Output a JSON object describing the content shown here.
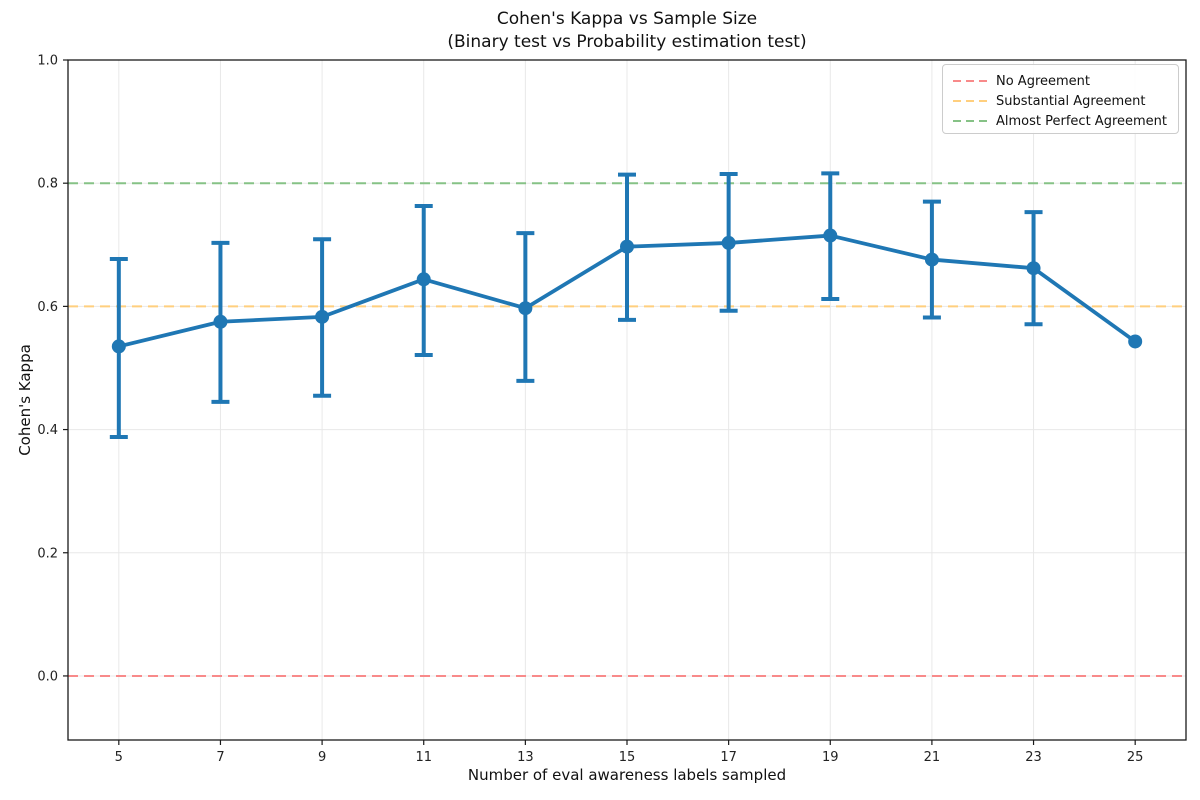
{
  "chart_data": {
    "type": "line",
    "title": "Cohen's Kappa vs Sample Size",
    "subtitle": "(Binary test vs Probability estimation test)",
    "xlabel": "Number of eval awareness labels sampled",
    "ylabel": "Cohen's Kappa",
    "x": [
      5,
      7,
      9,
      11,
      13,
      15,
      17,
      19,
      21,
      23,
      25
    ],
    "y": [
      0.535,
      0.575,
      0.583,
      0.644,
      0.597,
      0.697,
      0.703,
      0.715,
      0.676,
      0.662,
      0.543
    ],
    "ci_upper": [
      0.677,
      0.703,
      0.709,
      0.763,
      0.719,
      0.814,
      0.815,
      0.816,
      0.77,
      0.753,
      0.543
    ],
    "ci_lower": [
      0.388,
      0.445,
      0.455,
      0.521,
      0.479,
      0.578,
      0.593,
      0.612,
      0.582,
      0.571,
      0.543
    ],
    "xticks": [
      5,
      7,
      9,
      11,
      13,
      15,
      17,
      19,
      21,
      23,
      25
    ],
    "yticks": [
      0.0,
      0.2,
      0.4,
      0.6,
      0.8,
      1.0
    ],
    "ytick_labels": [
      "0.0",
      "0.2",
      "0.4",
      "0.6",
      "0.8",
      "1.0"
    ],
    "xlim": [
      4,
      26
    ],
    "ylim": [
      -0.104,
      1.0
    ],
    "grid": true,
    "line_color": "#1f77b4",
    "legend_position": "upper right",
    "reference_lines": [
      {
        "label": "No Agreement",
        "y": 0.0,
        "color": "#f88a8a"
      },
      {
        "label": "Substantial Agreement",
        "y": 0.6,
        "color": "#ffcf7e"
      },
      {
        "label": "Almost Perfect Agreement",
        "y": 0.8,
        "color": "#86c286"
      }
    ]
  }
}
